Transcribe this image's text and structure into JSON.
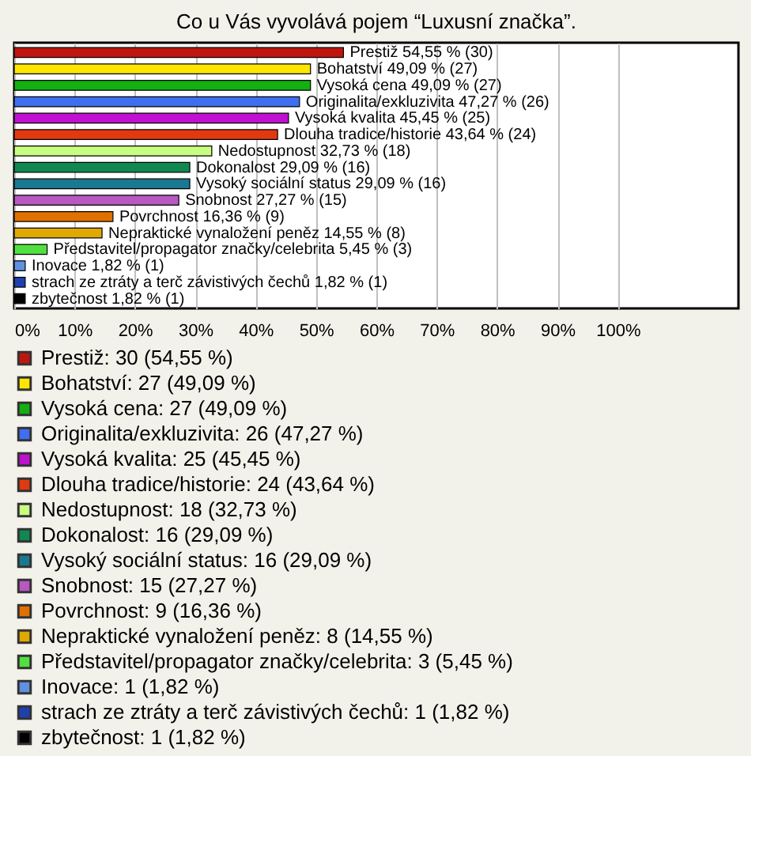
{
  "chart_data": {
    "type": "bar",
    "orientation": "horizontal",
    "title": "Co u Vás vyvolává pojem “Luxusní značka”.",
    "categories": [
      null,
      null,
      null,
      null,
      null,
      null,
      null,
      null,
      null,
      null,
      null,
      null,
      null,
      null,
      null,
      null
    ],
    "series": [
      {
        "name": "Prestiž: 30 (54,55 %)",
        "color": "#c0150f",
        "values": [
          54.55,
          null,
          null,
          null,
          null,
          null,
          null,
          null,
          null,
          null,
          null,
          null,
          null,
          null,
          null,
          null
        ],
        "value_labels": [
          "Prestiž 54,55 % (30)",
          null,
          null,
          null,
          null,
          null,
          null,
          null,
          null,
          null,
          null,
          null,
          null,
          null,
          null,
          null
        ]
      },
      {
        "name": "Bohatství: 27 (49,09 %)",
        "color": "#ffe600",
        "values": [
          null,
          49.09,
          null,
          null,
          null,
          null,
          null,
          null,
          null,
          null,
          null,
          null,
          null,
          null,
          null,
          null
        ],
        "value_labels": [
          null,
          "Bohatství 49,09 % (27)",
          null,
          null,
          null,
          null,
          null,
          null,
          null,
          null,
          null,
          null,
          null,
          null,
          null,
          null
        ]
      },
      {
        "name": "Vysoká cena: 27 (49,09 %)",
        "color": "#12b012",
        "values": [
          null,
          null,
          49.09,
          null,
          null,
          null,
          null,
          null,
          null,
          null,
          null,
          null,
          null,
          null,
          null,
          null
        ],
        "value_labels": [
          null,
          null,
          "Vysoká cena 49,09 % (27)",
          null,
          null,
          null,
          null,
          null,
          null,
          null,
          null,
          null,
          null,
          null,
          null,
          null
        ]
      },
      {
        "name": "Originalita/exkluzivita: 26 (47,27 %)",
        "color": "#3f6ff0",
        "values": [
          null,
          null,
          null,
          47.27,
          null,
          null,
          null,
          null,
          null,
          null,
          null,
          null,
          null,
          null,
          null,
          null
        ],
        "value_labels": [
          null,
          null,
          null,
          "Originalita/exkluzivita 47,27 % (26)",
          null,
          null,
          null,
          null,
          null,
          null,
          null,
          null,
          null,
          null,
          null,
          null
        ]
      },
      {
        "name": "Vysoká kvalita: 25 (45,45 %)",
        "color": "#c010d0",
        "values": [
          null,
          null,
          null,
          null,
          45.45,
          null,
          null,
          null,
          null,
          null,
          null,
          null,
          null,
          null,
          null,
          null
        ],
        "value_labels": [
          null,
          null,
          null,
          null,
          "Vysoká kvalita 45,45 % (25)",
          null,
          null,
          null,
          null,
          null,
          null,
          null,
          null,
          null,
          null,
          null
        ]
      },
      {
        "name": "Dlouha tradice/historie: 24 (43,64 %)",
        "color": "#e03a10",
        "values": [
          null,
          null,
          null,
          null,
          null,
          43.64,
          null,
          null,
          null,
          null,
          null,
          null,
          null,
          null,
          null,
          null
        ],
        "value_labels": [
          null,
          null,
          null,
          null,
          null,
          "Dlouha tradice/historie 43,64 % (24)",
          null,
          null,
          null,
          null,
          null,
          null,
          null,
          null,
          null,
          null
        ]
      },
      {
        "name": "Nedostupnost: 18 (32,73 %)",
        "color": "#c8ff80",
        "values": [
          null,
          null,
          null,
          null,
          null,
          null,
          32.73,
          null,
          null,
          null,
          null,
          null,
          null,
          null,
          null,
          null
        ],
        "value_labels": [
          null,
          null,
          null,
          null,
          null,
          null,
          "Nedostupnost 32,73 % (18)",
          null,
          null,
          null,
          null,
          null,
          null,
          null,
          null,
          null
        ]
      },
      {
        "name": "Dokonalost: 16 (29,09 %)",
        "color": "#108850",
        "values": [
          null,
          null,
          null,
          null,
          null,
          null,
          null,
          29.09,
          null,
          null,
          null,
          null,
          null,
          null,
          null,
          null
        ],
        "value_labels": [
          null,
          null,
          null,
          null,
          null,
          null,
          null,
          "Dokonalost 29,09 % (16)",
          null,
          null,
          null,
          null,
          null,
          null,
          null,
          null
        ]
      },
      {
        "name": "Vysoký sociální status: 16 (29,09 %)",
        "color": "#1a7890",
        "values": [
          null,
          null,
          null,
          null,
          null,
          null,
          null,
          null,
          29.09,
          null,
          null,
          null,
          null,
          null,
          null,
          null
        ],
        "value_labels": [
          null,
          null,
          null,
          null,
          null,
          null,
          null,
          null,
          "Vysoký sociální status 29,09 % (16)",
          null,
          null,
          null,
          null,
          null,
          null,
          null
        ]
      },
      {
        "name": "Snobnost: 15 (27,27 %)",
        "color": "#b858c0",
        "values": [
          null,
          null,
          null,
          null,
          null,
          null,
          null,
          null,
          null,
          27.27,
          null,
          null,
          null,
          null,
          null,
          null
        ],
        "value_labels": [
          null,
          null,
          null,
          null,
          null,
          null,
          null,
          null,
          null,
          "Snobnost 27,27 % (15)",
          null,
          null,
          null,
          null,
          null,
          null
        ]
      },
      {
        "name": "Povrchnost: 9 (16,36 %)",
        "color": "#e07000",
        "values": [
          null,
          null,
          null,
          null,
          null,
          null,
          null,
          null,
          null,
          null,
          16.36,
          null,
          null,
          null,
          null,
          null
        ],
        "value_labels": [
          null,
          null,
          null,
          null,
          null,
          null,
          null,
          null,
          null,
          null,
          "Povrchnost 16,36 % (9)",
          null,
          null,
          null,
          null,
          null
        ]
      },
      {
        "name": "Nepraktické vynaložení peněz: 8 (14,55 %)",
        "color": "#e0a800",
        "values": [
          null,
          null,
          null,
          null,
          null,
          null,
          null,
          null,
          null,
          null,
          null,
          14.55,
          null,
          null,
          null,
          null
        ],
        "value_labels": [
          null,
          null,
          null,
          null,
          null,
          null,
          null,
          null,
          null,
          null,
          null,
          "Nepraktické vynaložení peněz 14,55 % (8)",
          null,
          null,
          null,
          null
        ]
      },
      {
        "name": "Představitel/propagator značky/celebrita: 3 (5,45 %)",
        "color": "#50e040",
        "values": [
          null,
          null,
          null,
          null,
          null,
          null,
          null,
          null,
          null,
          null,
          null,
          null,
          5.45,
          null,
          null,
          null
        ],
        "value_labels": [
          null,
          null,
          null,
          null,
          null,
          null,
          null,
          null,
          null,
          null,
          null,
          null,
          "Představitel/propagator značky/celebrita 5,45 % (3)",
          null,
          null,
          null
        ]
      },
      {
        "name": "Inovace: 1 (1,82 %)",
        "color": "#6090e0",
        "values": [
          null,
          null,
          null,
          null,
          null,
          null,
          null,
          null,
          null,
          null,
          null,
          null,
          null,
          1.82,
          null,
          null
        ],
        "value_labels": [
          null,
          null,
          null,
          null,
          null,
          null,
          null,
          null,
          null,
          null,
          null,
          null,
          null,
          "Inovace 1,82 % (1)",
          null,
          null
        ]
      },
      {
        "name": "strach ze ztráty a terč závistivých čechů: 1 (1,82 %)",
        "color": "#2040b0",
        "values": [
          null,
          null,
          null,
          null,
          null,
          null,
          null,
          null,
          null,
          null,
          null,
          null,
          null,
          null,
          1.82,
          null
        ],
        "value_labels": [
          null,
          null,
          null,
          null,
          null,
          null,
          null,
          null,
          null,
          null,
          null,
          null,
          null,
          null,
          "strach ze ztráty a terč závistivých čechů 1,82 % (1)",
          null
        ]
      },
      {
        "name": "zbytečnost: 1 (1,82 %)",
        "color": "#000000",
        "values": [
          null,
          null,
          null,
          null,
          null,
          null,
          null,
          null,
          null,
          null,
          null,
          null,
          null,
          null,
          null,
          1.82
        ],
        "value_labels": [
          null,
          null,
          null,
          null,
          null,
          null,
          null,
          null,
          null,
          null,
          null,
          null,
          null,
          null,
          null,
          "zbytečnost 1,82 % (1)"
        ]
      }
    ],
    "xlim": [
      0,
      120
    ],
    "xticks": [
      {
        "value": 0,
        "label": "0%"
      },
      {
        "value": 10,
        "label": "10%"
      },
      {
        "value": 20,
        "label": "20%"
      },
      {
        "value": 30,
        "label": "30%"
      },
      {
        "value": 40,
        "label": "40%"
      },
      {
        "value": 50,
        "label": "50%"
      },
      {
        "value": 60,
        "label": "60%"
      },
      {
        "value": 70,
        "label": "70%"
      },
      {
        "value": 80,
        "label": "80%"
      },
      {
        "value": 90,
        "label": "90%"
      },
      {
        "value": 100,
        "label": "100%"
      }
    ],
    "grid": "x",
    "legend": "bottom",
    "tick_labels": "x"
  }
}
